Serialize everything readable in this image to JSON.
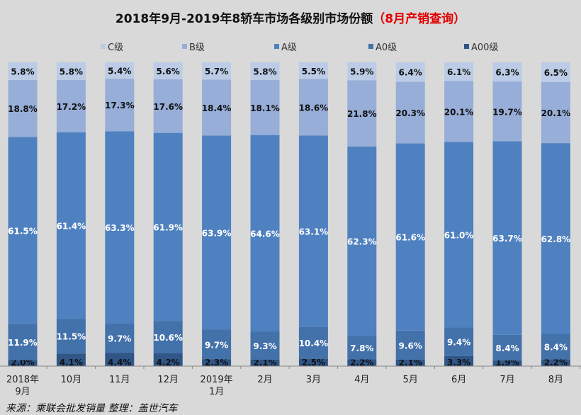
{
  "title": {
    "main": "2018年9月-2019年8轿车市场各级别市场份额",
    "highlight": "（8月产销查询）"
  },
  "source": "来源：乘联会批发销量  整理：盖世汽车",
  "chart_data": {
    "type": "bar",
    "stacked": true,
    "percent": true,
    "categories": [
      "2018年\n9月",
      "10月",
      "11月",
      "12月",
      "2019年\n1月",
      "2月",
      "3月",
      "4月",
      "5月",
      "6月",
      "7月",
      "8月"
    ],
    "ylim": [
      0,
      100
    ],
    "grid": false,
    "legend": "top",
    "series": [
      {
        "name": "A00级",
        "color": "#2f5686",
        "label_color": "#111111",
        "values": [
          2.0,
          4.1,
          4.4,
          4.2,
          2.3,
          2.1,
          2.5,
          2.2,
          2.1,
          3.3,
          1.9,
          2.2
        ]
      },
      {
        "name": "A0级",
        "color": "#4371aa",
        "label_color": "#ffffff",
        "values": [
          11.9,
          11.5,
          9.7,
          10.6,
          9.7,
          9.3,
          10.4,
          7.8,
          9.6,
          9.4,
          8.4,
          8.4
        ]
      },
      {
        "name": "A级",
        "color": "#4f81c0",
        "label_color": "#ffffff",
        "values": [
          61.5,
          61.4,
          63.3,
          61.9,
          63.9,
          64.6,
          63.1,
          62.3,
          61.6,
          61.0,
          63.7,
          62.8
        ]
      },
      {
        "name": "B级",
        "color": "#97aed8",
        "label_color": "#111111",
        "values": [
          18.8,
          17.2,
          17.3,
          17.6,
          18.4,
          18.1,
          18.6,
          21.8,
          20.3,
          20.1,
          19.7,
          20.1
        ]
      },
      {
        "name": "C级",
        "color": "#bccce6",
        "label_color": "#111111",
        "values": [
          5.8,
          5.8,
          5.4,
          5.6,
          5.7,
          5.8,
          5.5,
          5.9,
          6.4,
          6.1,
          6.3,
          6.5
        ]
      }
    ],
    "legend_order": [
      "C级",
      "B级",
      "A级",
      "A0级",
      "A00级"
    ]
  }
}
